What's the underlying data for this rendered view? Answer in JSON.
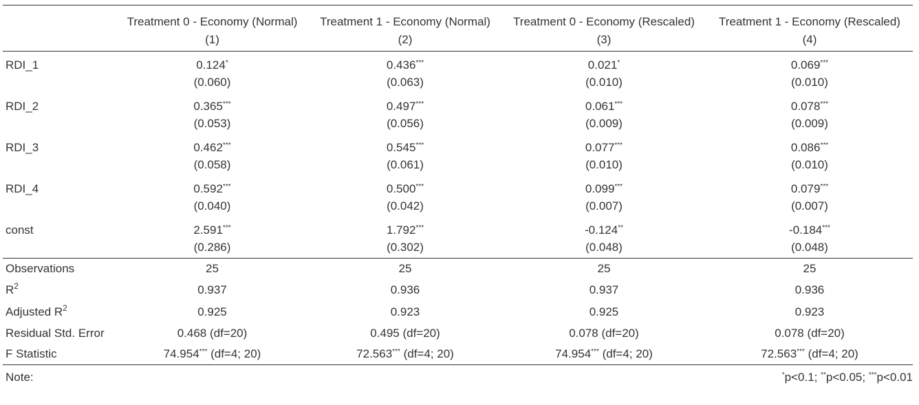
{
  "header": {
    "models": [
      {
        "title": "Treatment 0 - Economy (Normal)",
        "num": "(1)"
      },
      {
        "title": "Treatment 1 - Economy (Normal)",
        "num": "(2)"
      },
      {
        "title": "Treatment 0 - Economy (Rescaled)",
        "num": "(3)"
      },
      {
        "title": "Treatment 1 - Economy (Rescaled)",
        "num": "(4)"
      }
    ]
  },
  "rows": [
    {
      "label": "RDI_1",
      "coef": [
        [
          "0.124",
          "*"
        ],
        [
          "0.436",
          "***"
        ],
        [
          "0.021",
          "*"
        ],
        [
          "0.069",
          "***"
        ]
      ],
      "se": [
        "(0.060)",
        "(0.063)",
        "(0.010)",
        "(0.010)"
      ]
    },
    {
      "label": "RDI_2",
      "coef": [
        [
          "0.365",
          "***"
        ],
        [
          "0.497",
          "***"
        ],
        [
          "0.061",
          "***"
        ],
        [
          "0.078",
          "***"
        ]
      ],
      "se": [
        "(0.053)",
        "(0.056)",
        "(0.009)",
        "(0.009)"
      ]
    },
    {
      "label": "RDI_3",
      "coef": [
        [
          "0.462",
          "***"
        ],
        [
          "0.545",
          "***"
        ],
        [
          "0.077",
          "***"
        ],
        [
          "0.086",
          "***"
        ]
      ],
      "se": [
        "(0.058)",
        "(0.061)",
        "(0.010)",
        "(0.010)"
      ]
    },
    {
      "label": "RDI_4",
      "coef": [
        [
          "0.592",
          "***"
        ],
        [
          "0.500",
          "***"
        ],
        [
          "0.099",
          "***"
        ],
        [
          "0.079",
          "***"
        ]
      ],
      "se": [
        "(0.040)",
        "(0.042)",
        "(0.007)",
        "(0.007)"
      ]
    },
    {
      "label": "const",
      "coef": [
        [
          "2.591",
          "***"
        ],
        [
          "1.792",
          "***"
        ],
        [
          "-0.124",
          "**"
        ],
        [
          "-0.184",
          "***"
        ]
      ],
      "se": [
        "(0.286)",
        "(0.302)",
        "(0.048)",
        "(0.048)"
      ]
    }
  ],
  "stats": {
    "observations": {
      "label": "Observations",
      "values": [
        "25",
        "25",
        "25",
        "25"
      ]
    },
    "r2": {
      "label": "R",
      "sup": "2",
      "values": [
        "0.937",
        "0.936",
        "0.937",
        "0.936"
      ]
    },
    "adj_r2": {
      "label": "Adjusted R",
      "sup": "2",
      "values": [
        "0.925",
        "0.923",
        "0.925",
        "0.923"
      ]
    },
    "resid_se": {
      "label": "Residual Std. Error",
      "values": [
        "0.468 (df=20)",
        "0.495 (df=20)",
        "0.078 (df=20)",
        "0.078 (df=20)"
      ]
    },
    "f_stat": {
      "label": "F Statistic",
      "values": [
        {
          "value": "74.954",
          "stars": "***",
          "df": " (df=4; 20)"
        },
        {
          "value": "72.563",
          "stars": "***",
          "df": " (df=4; 20)"
        },
        {
          "value": "74.954",
          "stars": "***",
          "df": " (df=4; 20)"
        },
        {
          "value": "72.563",
          "stars": "***",
          "df": " (df=4; 20)"
        }
      ]
    }
  },
  "note": {
    "label": "Note:",
    "s1": "*",
    "t1": "p<0.1; ",
    "s2": "**",
    "t2": "p<0.05; ",
    "s3": "***",
    "t3": "p<0.01"
  }
}
